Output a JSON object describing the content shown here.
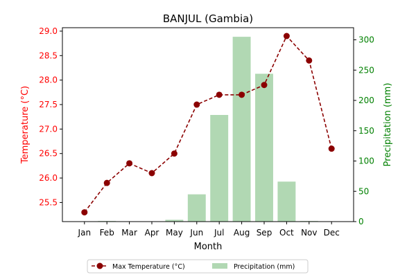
{
  "chart_data": {
    "type": "bar+line",
    "title": "BANJUL (Gambia)",
    "xlabel": "Month",
    "ylabel_left": "Temperature (°C)",
    "ylabel_right": "Precipitation (mm)",
    "categories": [
      "Jan",
      "Feb",
      "Mar",
      "Apr",
      "May",
      "Jun",
      "Jul",
      "Aug",
      "Sep",
      "Oct",
      "Nov",
      "Dec"
    ],
    "series": [
      {
        "name": "Max Temperature (°C)",
        "kind": "line",
        "axis": "left",
        "values": [
          25.3,
          25.9,
          26.3,
          26.1,
          26.5,
          27.5,
          27.7,
          27.7,
          27.9,
          28.9,
          28.4,
          26.6
        ]
      },
      {
        "name": "Precipitation (mm)",
        "kind": "bar",
        "axis": "right",
        "values": [
          0,
          1,
          0,
          0,
          3,
          45,
          176,
          305,
          244,
          66,
          1,
          0
        ]
      }
    ],
    "ylim_left": [
      25.11,
      29.07
    ],
    "yticks_left": [
      "25.5",
      "26.0",
      "26.5",
      "27.0",
      "27.5",
      "28.0",
      "28.5",
      "29.0"
    ],
    "ylim_right": [
      0,
      320
    ],
    "yticks_right": [
      "0",
      "50",
      "100",
      "150",
      "200",
      "250",
      "300"
    ],
    "grid": false,
    "legend_position": "bottom-center",
    "colors": {
      "line": "#8b0000",
      "bar": "#b1d8b3",
      "left_axis": "#ff0000",
      "right_axis": "#008000",
      "text": "#000000"
    }
  }
}
